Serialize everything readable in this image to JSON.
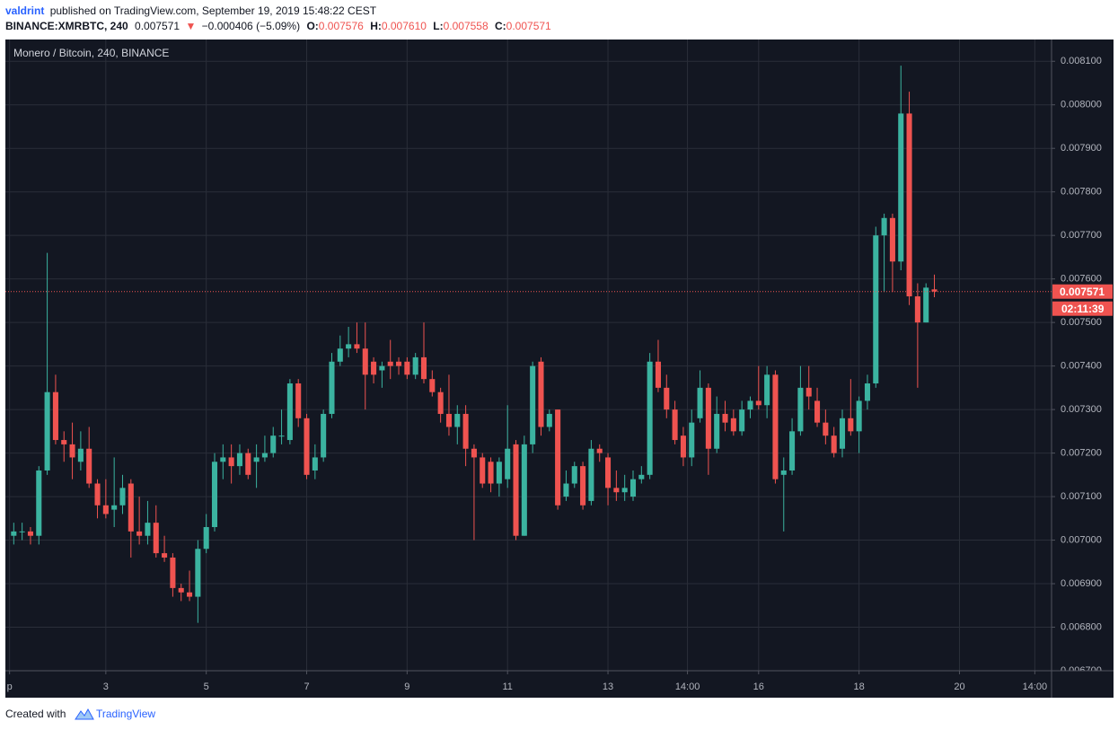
{
  "header": {
    "author": "valdrint",
    "published": "published on TradingView.com, September 19, 2019 15:48:22 CEST",
    "symbol": "BINANCE:XMRBTC, 240",
    "last": "0.007571",
    "arrow": "▼",
    "change": "−0.000406 (−5.09%)",
    "open_label": "O:",
    "open": "0.007576",
    "high_label": "H:",
    "high": "0.007610",
    "low_label": "L:",
    "low": "0.007558",
    "close_label": "C:",
    "close": "0.007571"
  },
  "chart_data": {
    "type": "candlestick",
    "title": "Monero / Bitcoin, 240, BINANCE",
    "up_color": "#3bb3a0",
    "down_color": "#ef5350",
    "grid": true,
    "xlim": [
      -1,
      124
    ],
    "xticks": [
      {
        "value": -0.5,
        "label": "p"
      },
      {
        "value": 11,
        "label": "3"
      },
      {
        "value": 23,
        "label": "5"
      },
      {
        "value": 35,
        "label": "7"
      },
      {
        "value": 47,
        "label": "9"
      },
      {
        "value": 59,
        "label": "11"
      },
      {
        "value": 71,
        "label": "13"
      },
      {
        "value": 80.5,
        "label": "14:00"
      },
      {
        "value": 89,
        "label": "16"
      },
      {
        "value": 101,
        "label": "18"
      },
      {
        "value": 113,
        "label": "20"
      },
      {
        "value": 122,
        "label": "14:00"
      }
    ],
    "ylim": [
      0.0067,
      0.00815
    ],
    "yticks": [
      {
        "value": 0.0067,
        "label": "0.006700"
      },
      {
        "value": 0.0068,
        "label": "0.006800"
      },
      {
        "value": 0.0069,
        "label": "0.006900"
      },
      {
        "value": 0.007,
        "label": "0.007000"
      },
      {
        "value": 0.0071,
        "label": "0.007100"
      },
      {
        "value": 0.0072,
        "label": "0.007200"
      },
      {
        "value": 0.0073,
        "label": "0.007300"
      },
      {
        "value": 0.0074,
        "label": "0.007400"
      },
      {
        "value": 0.0075,
        "label": "0.007500"
      },
      {
        "value": 0.0076,
        "label": "0.007600"
      },
      {
        "value": 0.0077,
        "label": "0.007700"
      },
      {
        "value": 0.0078,
        "label": "0.007800"
      },
      {
        "value": 0.0079,
        "label": "0.007900"
      },
      {
        "value": 0.008,
        "label": "0.008000"
      },
      {
        "value": 0.0081,
        "label": "0.008100"
      }
    ],
    "price_line": {
      "value": 0.007571,
      "label": "0.007571"
    },
    "countdown": "02:11:39",
    "open": [
      0.00701,
      0.00702,
      0.00702,
      0.00701,
      0.00716,
      0.00734,
      0.00723,
      0.00722,
      0.00718,
      0.00721,
      0.00713,
      0.00708,
      0.00707,
      0.00708,
      0.00713,
      0.00702,
      0.00701,
      0.00704,
      0.00697,
      0.00696,
      0.00689,
      0.00688,
      0.00687,
      0.00698,
      0.00703,
      0.00718,
      0.00719,
      0.00717,
      0.0072,
      0.00718,
      0.00719,
      0.0072,
      0.00724,
      0.00723,
      0.00736,
      0.00728,
      0.00716,
      0.00719,
      0.00729,
      0.00741,
      0.00744,
      0.00745,
      0.00744,
      0.00741,
      0.00739,
      0.00741,
      0.00741,
      0.00741,
      0.00738,
      0.00742,
      0.00737,
      0.00734,
      0.00729,
      0.00726,
      0.00729,
      0.00721,
      0.00719,
      0.00718,
      0.00713,
      0.00714,
      0.00722,
      0.00701,
      0.00722,
      0.00741,
      0.00726,
      0.0073,
      0.0071,
      0.00713,
      0.00717,
      0.00709,
      0.00721,
      0.00719,
      0.00712,
      0.00711,
      0.0071,
      0.00714,
      0.00715,
      0.00741,
      0.00735,
      0.0073,
      0.00724,
      0.00719,
      0.00728,
      0.00735,
      0.00721,
      0.00729,
      0.00728,
      0.00725,
      0.0073,
      0.00732,
      0.00731,
      0.00738,
      0.00715,
      0.00716,
      0.00725,
      0.00735,
      0.00732,
      0.00727,
      0.00724,
      0.00721,
      0.00728,
      0.00725,
      0.00732,
      0.00736,
      0.0077,
      0.00774,
      0.00764,
      0.00798,
      0.00756,
      0.0075,
      0.007576
    ],
    "high": [
      0.00704,
      0.00704,
      0.00703,
      0.00717,
      0.00766,
      0.00738,
      0.00725,
      0.00727,
      0.00725,
      0.00726,
      0.00714,
      0.00714,
      0.00719,
      0.00715,
      0.00714,
      0.0071,
      0.00709,
      0.00708,
      0.00701,
      0.00697,
      0.0069,
      0.00693,
      0.007,
      0.00706,
      0.0072,
      0.00722,
      0.00722,
      0.00722,
      0.00721,
      0.00722,
      0.00724,
      0.00726,
      0.0073,
      0.00737,
      0.00737,
      0.00729,
      0.00722,
      0.0073,
      0.00743,
      0.00747,
      0.00749,
      0.0075,
      0.0075,
      0.00742,
      0.00741,
      0.00746,
      0.00742,
      0.00742,
      0.00743,
      0.0075,
      0.00739,
      0.00735,
      0.00738,
      0.00731,
      0.00731,
      0.00722,
      0.0072,
      0.00719,
      0.00719,
      0.00731,
      0.00723,
      0.00724,
      0.00741,
      0.00742,
      0.0073,
      0.0073,
      0.00716,
      0.00718,
      0.00718,
      0.00723,
      0.00722,
      0.0072,
      0.00716,
      0.00715,
      0.00716,
      0.00717,
      0.00743,
      0.00746,
      0.00738,
      0.00732,
      0.00726,
      0.0073,
      0.00739,
      0.00736,
      0.00733,
      0.00732,
      0.0073,
      0.00732,
      0.00733,
      0.0074,
      0.0074,
      0.00739,
      0.00719,
      0.00728,
      0.0074,
      0.0074,
      0.00735,
      0.0073,
      0.00726,
      0.0073,
      0.00737,
      0.00733,
      0.00738,
      0.00772,
      0.00775,
      0.00775,
      0.00809,
      0.00803,
      0.00759,
      0.00759,
      0.00761
    ],
    "low": [
      0.00699,
      0.007,
      0.00699,
      0.00699,
      0.00715,
      0.00722,
      0.00718,
      0.00714,
      0.00716,
      0.00712,
      0.00705,
      0.00705,
      0.00703,
      0.00706,
      0.00696,
      0.00699,
      0.00699,
      0.00696,
      0.00695,
      0.00687,
      0.00686,
      0.00686,
      0.00681,
      0.00697,
      0.00702,
      0.00714,
      0.00713,
      0.00715,
      0.00714,
      0.00712,
      0.00718,
      0.00719,
      0.00722,
      0.00722,
      0.00726,
      0.00714,
      0.00714,
      0.00718,
      0.00728,
      0.0074,
      0.00742,
      0.00743,
      0.0073,
      0.00736,
      0.00735,
      0.00737,
      0.00738,
      0.00737,
      0.00737,
      0.00736,
      0.00733,
      0.00727,
      0.00724,
      0.00722,
      0.00717,
      0.007,
      0.00712,
      0.00711,
      0.0071,
      0.00712,
      0.007,
      0.00701,
      0.0072,
      0.00724,
      0.00725,
      0.00707,
      0.00709,
      0.00712,
      0.00707,
      0.00708,
      0.00718,
      0.00708,
      0.00709,
      0.00709,
      0.00709,
      0.00713,
      0.00714,
      0.00734,
      0.00728,
      0.00722,
      0.00717,
      0.00717,
      0.00727,
      0.00715,
      0.0072,
      0.00725,
      0.00724,
      0.00724,
      0.00728,
      0.0073,
      0.00728,
      0.00713,
      0.00702,
      0.00715,
      0.00724,
      0.0073,
      0.00726,
      0.00722,
      0.00719,
      0.00719,
      0.00724,
      0.0072,
      0.0073,
      0.00735,
      0.00757,
      0.00757,
      0.00762,
      0.00754,
      0.00735,
      0.0075,
      0.007558
    ],
    "close": [
      0.00702,
      0.00702,
      0.00701,
      0.00716,
      0.00734,
      0.00723,
      0.00722,
      0.00719,
      0.00721,
      0.00713,
      0.00708,
      0.00706,
      0.00708,
      0.00712,
      0.00702,
      0.00701,
      0.00704,
      0.00697,
      0.00696,
      0.00689,
      0.00688,
      0.00687,
      0.00698,
      0.00703,
      0.00718,
      0.00719,
      0.00717,
      0.0072,
      0.00715,
      0.00719,
      0.0072,
      0.00724,
      0.00724,
      0.00736,
      0.00728,
      0.00715,
      0.00719,
      0.00729,
      0.00741,
      0.00744,
      0.00745,
      0.00744,
      0.00738,
      0.00738,
      0.0074,
      0.0074,
      0.0074,
      0.00738,
      0.00742,
      0.00737,
      0.00734,
      0.00729,
      0.00726,
      0.00729,
      0.00721,
      0.00719,
      0.00713,
      0.00713,
      0.00718,
      0.00721,
      0.00701,
      0.00722,
      0.0074,
      0.00726,
      0.00729,
      0.00708,
      0.00713,
      0.00717,
      0.00708,
      0.00721,
      0.0072,
      0.00712,
      0.00711,
      0.00712,
      0.00714,
      0.00715,
      0.00741,
      0.00735,
      0.0073,
      0.00723,
      0.00719,
      0.00727,
      0.00735,
      0.00721,
      0.00729,
      0.00727,
      0.00725,
      0.0073,
      0.00732,
      0.00731,
      0.00738,
      0.00714,
      0.00716,
      0.00725,
      0.00735,
      0.00733,
      0.00727,
      0.00724,
      0.0072,
      0.00728,
      0.00725,
      0.00732,
      0.00736,
      0.0077,
      0.00774,
      0.00764,
      0.00798,
      0.00756,
      0.0075,
      0.00758,
      0.007571
    ]
  },
  "footer": {
    "created": "Created with",
    "brand": "TradingView"
  }
}
